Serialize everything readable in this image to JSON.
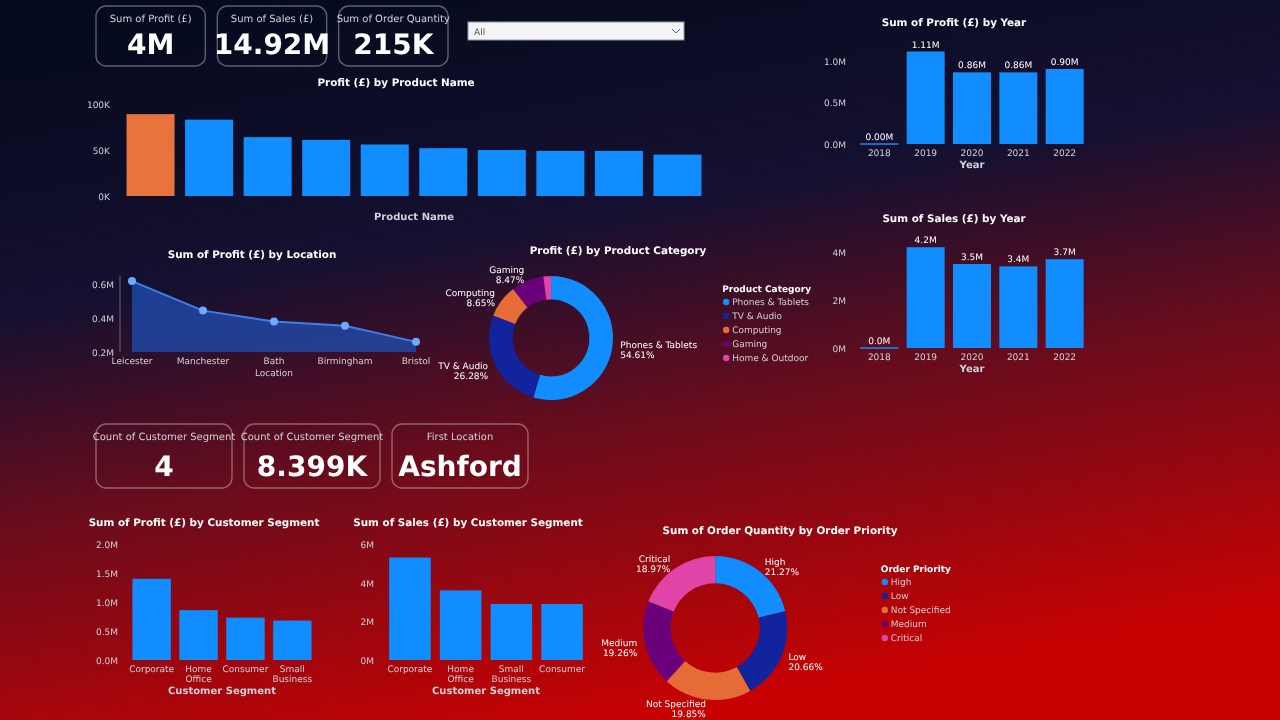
{
  "chart_data": [
    {
      "type": "other",
      "annotations": [
        "Sum of Profit (£)",
        "4M",
        "Sum of Sales (£)",
        "14.92M",
        "Sum of Order Quantity",
        "215K"
      ]
    },
    {
      "type": "other",
      "annotations": [
        "All"
      ]
    },
    {
      "type": "bar",
      "title": "Profit (£) by Product Name",
      "xlabel": "Product Name",
      "categories": [
        null,
        null,
        null,
        null,
        null,
        null,
        null,
        null,
        null,
        null
      ],
      "values": [
        89000,
        83000,
        64000,
        61000,
        56000,
        52000,
        50000,
        49000,
        49000,
        45000
      ],
      "colors": [
        "#e8743b",
        "#118dff",
        "#118dff",
        "#118dff",
        "#118dff",
        "#118dff",
        "#118dff",
        "#118dff",
        "#118dff",
        "#118dff"
      ],
      "ylim": [
        0,
        100000
      ],
      "yticks": [
        {
          "value": 0,
          "label": "0K"
        },
        {
          "value": 50000,
          "label": "50K"
        },
        {
          "value": 100000,
          "label": "100K"
        }
      ]
    },
    {
      "type": "bar",
      "title": "Sum of Profit (£) by Year",
      "xlabel": "Year",
      "categories": [
        "2018",
        "2019",
        "2020",
        "2021",
        "2022"
      ],
      "values": [
        0,
        1110000,
        860000,
        860000,
        900000
      ],
      "value_labels": [
        "0.00M",
        "1.11M",
        "0.86M",
        "0.86M",
        "0.90M"
      ],
      "color": "#118dff",
      "ylim": [
        0,
        1200000
      ],
      "yticks": [
        {
          "value": 0,
          "label": "0.0M"
        },
        {
          "value": 500000,
          "label": "0.5M"
        },
        {
          "value": 1000000,
          "label": "1.0M"
        }
      ]
    },
    {
      "type": "bar",
      "title": "Sum of Sales (£) by Year",
      "xlabel": "Year",
      "categories": [
        "2018",
        "2019",
        "2020",
        "2021",
        "2022"
      ],
      "values": [
        0,
        4200000,
        3500000,
        3400000,
        3700000
      ],
      "value_labels": [
        "0.0M",
        "4.2M",
        "3.5M",
        "3.4M",
        "3.7M"
      ],
      "color": "#118dff",
      "ylim": [
        0,
        4500000
      ],
      "yticks": [
        {
          "value": 0,
          "label": "0M"
        },
        {
          "value": 2000000,
          "label": "2M"
        },
        {
          "value": 4000000,
          "label": "4M"
        }
      ]
    },
    {
      "type": "area",
      "title": "Sum of Profit (£) by Location",
      "xlabel": "Location",
      "categories": [
        "Leicester",
        "Manchester",
        "Bath",
        "Birmingham",
        "Bristol"
      ],
      "values": [
        620000,
        445000,
        380000,
        355000,
        260000
      ],
      "color": "#1f4fb4",
      "marker": "circle",
      "ylim": [
        200000,
        650000
      ],
      "yticks": [
        {
          "value": 200000,
          "label": "0.2M"
        },
        {
          "value": 400000,
          "label": "0.4M"
        },
        {
          "value": 600000,
          "label": "0.6M"
        }
      ]
    },
    {
      "type": "donut",
      "title": "Profit (£) by Product Category",
      "legend_title": "Product Category",
      "legend": "right",
      "categories": [
        "Phones & Tablets",
        "TV & Audio",
        "Computing",
        "Gaming",
        "Home & Outdoor"
      ],
      "values": [
        54.61,
        26.28,
        8.65,
        8.47,
        1.99
      ],
      "value_labels": [
        "54.61%",
        "26.28%",
        "8.65%",
        "8.47%",
        null
      ],
      "colors": [
        "#118dff",
        "#12239e",
        "#e66c37",
        "#6b007b",
        "#e044a7"
      ]
    },
    {
      "type": "other",
      "annotations": [
        "Count of Customer Segment",
        "4",
        "Count of Customer Segment",
        "8.399K",
        "First Location",
        "Ashford"
      ]
    },
    {
      "type": "bar",
      "title": "Sum of Profit (£) by Customer Segment",
      "xlabel": "Customer Segment",
      "categories": [
        "Corporate",
        "Home Office",
        "Consumer",
        "Small Business"
      ],
      "values": [
        1400000,
        860000,
        730000,
        680000
      ],
      "color": "#118dff",
      "ylim": [
        0,
        2000000
      ],
      "yticks": [
        {
          "value": 0,
          "label": "0.0M"
        },
        {
          "value": 500000,
          "label": "0.5M"
        },
        {
          "value": 1000000,
          "label": "1.0M"
        },
        {
          "value": 1500000,
          "label": "1.5M"
        },
        {
          "value": 2000000,
          "label": "2.0M"
        }
      ]
    },
    {
      "type": "bar",
      "title": "Sum of Sales (£) by Customer Segment",
      "xlabel": "Customer Segment",
      "categories": [
        "Corporate",
        "Home Office",
        "Small Business",
        "Consumer"
      ],
      "values": [
        5300000,
        3600000,
        2900000,
        2900000
      ],
      "color": "#118dff",
      "ylim": [
        0,
        6000000
      ],
      "yticks": [
        {
          "value": 0,
          "label": "0M"
        },
        {
          "value": 2000000,
          "label": "2M"
        },
        {
          "value": 4000000,
          "label": "4M"
        },
        {
          "value": 6000000,
          "label": "6M"
        }
      ]
    },
    {
      "type": "donut",
      "title": "Sum of Order Quantity by Order Priority",
      "legend_title": "Order Priority",
      "legend": "right",
      "categories": [
        "High",
        "Low",
        "Not Specified",
        "Medium",
        "Critical"
      ],
      "values": [
        21.27,
        20.66,
        19.85,
        19.26,
        18.97
      ],
      "value_labels": [
        "21.27%",
        "20.66%",
        "19.85%",
        "19.26%",
        "18.97%"
      ],
      "colors": [
        "#118dff",
        "#12239e",
        "#e66c37",
        "#6b007b",
        "#e044a7"
      ]
    }
  ]
}
